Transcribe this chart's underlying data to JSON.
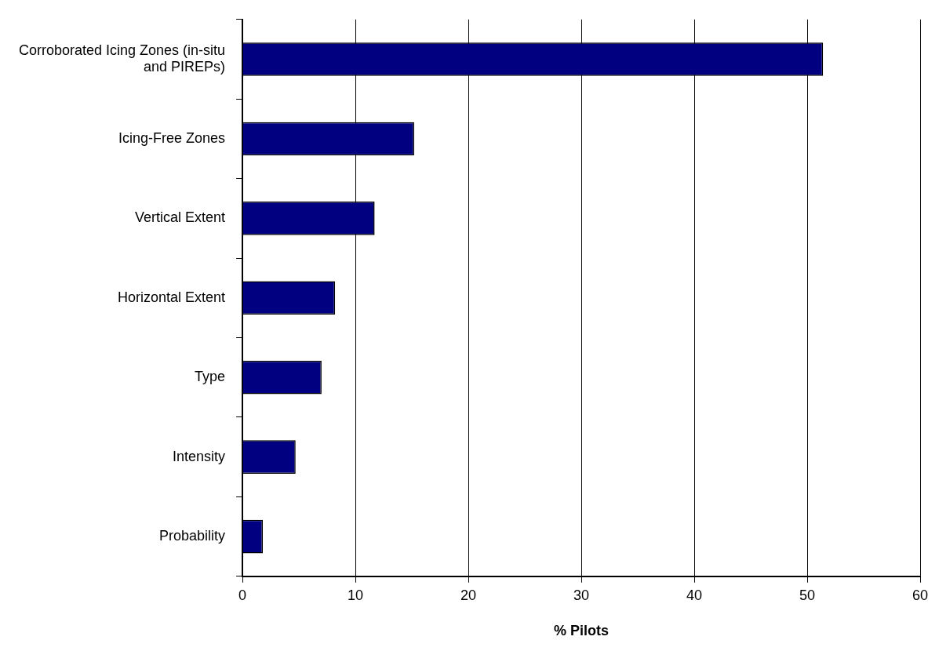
{
  "chart_data": {
    "type": "bar",
    "orientation": "horizontal",
    "categories": [
      "Corroborated Icing Zones (in-situ and PIREPs)",
      "Icing-Free Zones",
      "Vertical Extent",
      "Horizontal Extent",
      "Type",
      "Intensity",
      "Probability"
    ],
    "values": [
      51.4,
      15.2,
      11.7,
      8.2,
      7.0,
      4.7,
      1.8
    ],
    "color": "#000080",
    "xlabel": "% Pilots",
    "xlim": [
      0,
      60
    ],
    "xticks": [
      0,
      10,
      20,
      30,
      40,
      50,
      60
    ],
    "grid": "x",
    "legend": false
  }
}
